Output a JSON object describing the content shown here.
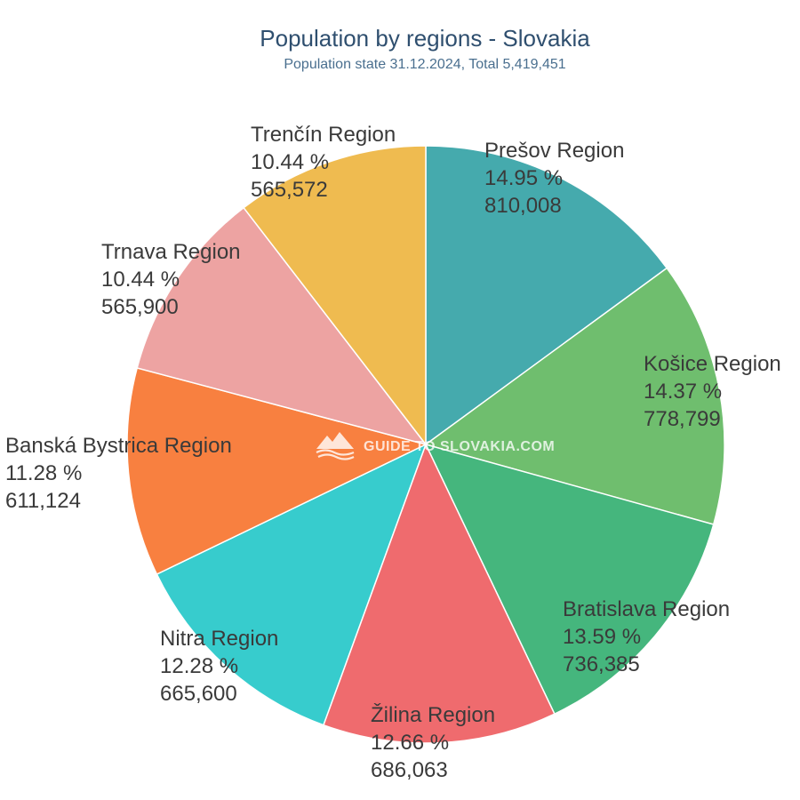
{
  "chart_data": {
    "type": "pie",
    "title": "Population by regions - Slovakia",
    "subtitle": "Population state 31.12.2024, Total 5,419,451",
    "start_angle_deg": 0,
    "direction": "clockwise",
    "slices": [
      {
        "label": "Prešov Region",
        "percent": "14.95 %",
        "value": 810008,
        "value_label": "810,008",
        "color": "#45aaad"
      },
      {
        "label": "Košice Region",
        "percent": "14.37 %",
        "value": 778799,
        "value_label": "778,799",
        "color": "#6fbe6e"
      },
      {
        "label": "Bratislava Region",
        "percent": "13.59 %",
        "value": 736385,
        "value_label": "736,385",
        "color": "#45b67d"
      },
      {
        "label": "Žilina Region",
        "percent": "12.66 %",
        "value": 686063,
        "value_label": "686,063",
        "color": "#ef6b6e"
      },
      {
        "label": "Nitra Region",
        "percent": "12.28 %",
        "value": 665600,
        "value_label": "665,600",
        "color": "#37cccd"
      },
      {
        "label": "Banská Bystrica Region",
        "percent": "11.28 %",
        "value": 611124,
        "value_label": "611,124",
        "color": "#f88040"
      },
      {
        "label": "Trnava Region",
        "percent": "10.44 %",
        "value": 565900,
        "value_label": "565,900",
        "color": "#eda3a2"
      },
      {
        "label": "Trenčín Region",
        "percent": "10.44 %",
        "value": 565572,
        "value_label": "565,572",
        "color": "#efbb50"
      }
    ]
  },
  "watermark": {
    "text": "GUIDE TO SLOVAKIA.COM",
    "icon": "mountain-logo-icon"
  }
}
